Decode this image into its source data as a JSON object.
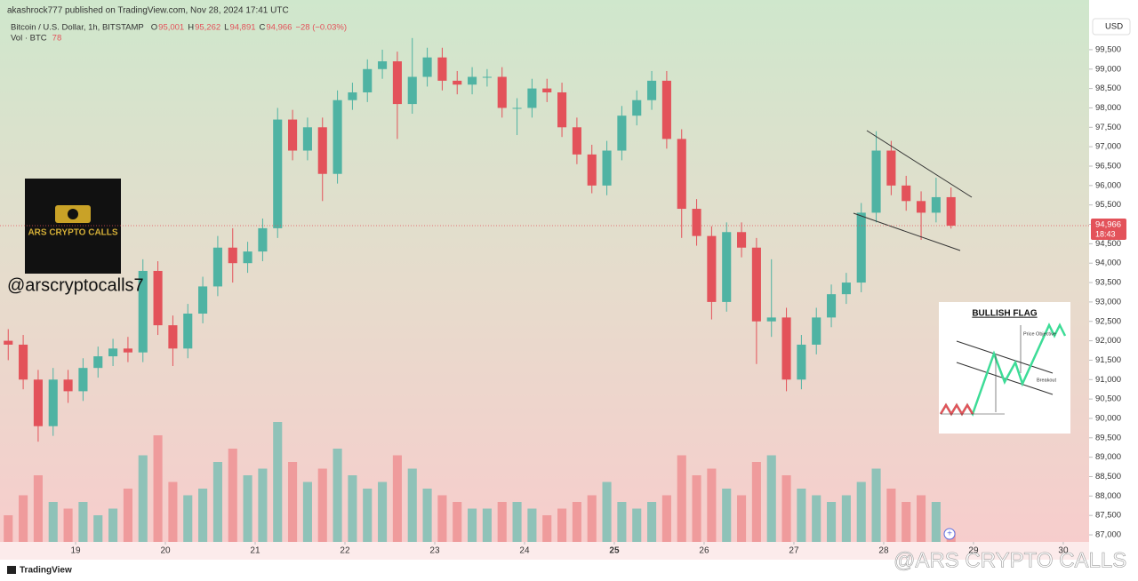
{
  "header": {
    "publisher": "akashrock777 published on TradingView.com, Nov 28, 2024 17:41 UTC"
  },
  "chart_data": {
    "type": "candlestick",
    "title": "Bitcoin / U.S. Dollar, 1h, BITSTAMP",
    "ohlc_legend": [
      {
        "key": "O",
        "value": "95,001"
      },
      {
        "key": "H",
        "value": "95,262"
      },
      {
        "key": "L",
        "value": "94,891"
      },
      {
        "key": "C",
        "value": "94,966"
      }
    ],
    "change": "−28 (−0.03%)",
    "volume_label": "Vol · BTC",
    "currency": "USD",
    "last_price_label": "94,966",
    "countdown": "18:43",
    "up_color": "#4fb3a3",
    "down_color": "#e3525a",
    "volume_up_color": "#8fc2b8",
    "volume_down_color": "#ef9b9c",
    "xlim": [
      -20.2,
      270.9
    ],
    "xticks": [
      {
        "value": 0,
        "label": "19"
      },
      {
        "value": 24,
        "label": "20"
      },
      {
        "value": 48,
        "label": "21"
      },
      {
        "value": 72,
        "label": "22"
      },
      {
        "value": 96,
        "label": "23"
      },
      {
        "value": 120,
        "label": "24"
      },
      {
        "value": 144,
        "label": "25"
      },
      {
        "value": 168,
        "label": "26"
      },
      {
        "value": 192,
        "label": "27"
      },
      {
        "value": 216,
        "label": "28"
      },
      {
        "value": 240,
        "label": "29"
      },
      {
        "value": 264,
        "label": "30"
      }
    ],
    "ylim": [
      86360,
      100780
    ],
    "yticks": [
      {
        "value": 87000,
        "label": "87,000"
      },
      {
        "value": 87500,
        "label": "87,500"
      },
      {
        "value": 88000,
        "label": "88,000"
      },
      {
        "value": 88500,
        "label": "88,500"
      },
      {
        "value": 89000,
        "label": "89,000"
      },
      {
        "value": 89500,
        "label": "89,500"
      },
      {
        "value": 90000,
        "label": "90,000"
      },
      {
        "value": 90500,
        "label": "90,500"
      },
      {
        "value": 91000,
        "label": "91,000"
      },
      {
        "value": 91500,
        "label": "91,500"
      },
      {
        "value": 92000,
        "label": "92,000"
      },
      {
        "value": 92500,
        "label": "92,500"
      },
      {
        "value": 93000,
        "label": "93,000"
      },
      {
        "value": 93500,
        "label": "93,500"
      },
      {
        "value": 94000,
        "label": "94,000"
      },
      {
        "value": 94500,
        "label": "94,500"
      },
      {
        "value": 95000,
        "label": "95,000"
      },
      {
        "value": 95500,
        "label": "95,500"
      },
      {
        "value": 96000,
        "label": "96,000"
      },
      {
        "value": 96500,
        "label": "96,500"
      },
      {
        "value": 97000,
        "label": "97,000"
      },
      {
        "value": 97500,
        "label": "97,500"
      },
      {
        "value": 98000,
        "label": "98,000"
      },
      {
        "value": 98500,
        "label": "98,500"
      },
      {
        "value": 99000,
        "label": "99,000"
      },
      {
        "value": 99500,
        "label": "99,500"
      }
    ],
    "candles": {
      "x": [
        -18,
        -14,
        -10,
        -6,
        -2,
        2,
        6,
        10,
        14,
        18,
        22,
        26,
        30,
        34,
        38,
        42,
        46,
        50,
        54,
        58,
        62,
        66,
        70,
        74,
        78,
        82,
        86,
        90,
        94,
        98,
        102,
        106,
        110,
        114,
        118,
        122,
        126,
        130,
        134,
        138,
        142,
        146,
        150,
        154,
        158,
        162,
        166,
        170,
        174,
        178,
        182,
        186,
        190,
        194,
        198,
        202,
        206,
        210,
        214,
        218,
        222,
        226,
        230,
        234
      ],
      "open": [
        92000,
        91900,
        91000,
        89800,
        91000,
        90700,
        91300,
        91600,
        91800,
        91700,
        93800,
        92400,
        91800,
        92700,
        93400,
        94400,
        94000,
        94300,
        94900,
        97700,
        96900,
        97500,
        96300,
        98200,
        98400,
        99000,
        99200,
        98100,
        98800,
        99300,
        98700,
        98600,
        98800,
        98800,
        98000,
        98000,
        98500,
        98400,
        97500,
        96800,
        96000,
        96900,
        97800,
        98200,
        98700,
        97200,
        95400,
        94700,
        93000,
        94800,
        94400,
        92500,
        92600,
        91000,
        91900,
        92600,
        93200,
        93500,
        95300,
        96900,
        96000,
        95600,
        95300,
        95700
      ],
      "high": [
        92300,
        92150,
        91250,
        91300,
        91250,
        91550,
        91850,
        92050,
        92100,
        94100,
        94050,
        92650,
        92950,
        93650,
        94700,
        94900,
        94550,
        95150,
        98000,
        97950,
        97750,
        97750,
        98450,
        98650,
        99250,
        99500,
        99450,
        99800,
        99550,
        99550,
        98950,
        99050,
        99000,
        99050,
        98250,
        98750,
        98750,
        98650,
        97750,
        97050,
        97150,
        98050,
        98450,
        98950,
        98950,
        97450,
        95650,
        94950,
        95050,
        95050,
        94650,
        94100,
        92850,
        92150,
        92850,
        93450,
        93750,
        95550,
        97400,
        97150,
        96250,
        95850,
        96200,
        95950
      ],
      "low": [
        91500,
        90750,
        89400,
        89550,
        90400,
        90450,
        91050,
        91350,
        91450,
        91450,
        92150,
        91350,
        91550,
        92450,
        93150,
        93500,
        93750,
        94050,
        94650,
        96650,
        96650,
        95600,
        96050,
        97950,
        98150,
        98750,
        97200,
        97850,
        98550,
        98450,
        98350,
        98350,
        98550,
        97750,
        97300,
        97750,
        98150,
        97250,
        96550,
        95800,
        95750,
        96650,
        97550,
        97950,
        96950,
        94650,
        94450,
        92550,
        92750,
        94150,
        91400,
        92100,
        90700,
        90750,
        91650,
        92350,
        92950,
        93250,
        95050,
        95750,
        95350,
        94600,
        95050,
        94891
      ],
      "close": [
        91900,
        91000,
        89800,
        91000,
        90700,
        91300,
        91600,
        91800,
        91700,
        93800,
        92400,
        91800,
        92700,
        93400,
        94400,
        94000,
        94300,
        94900,
        97700,
        96900,
        97500,
        96300,
        98200,
        98400,
        99000,
        99200,
        98100,
        98800,
        99300,
        98700,
        98600,
        98800,
        98800,
        98000,
        98000,
        98500,
        98400,
        97500,
        96800,
        96000,
        96900,
        97800,
        98200,
        98700,
        97200,
        95400,
        94700,
        93000,
        94800,
        94400,
        92500,
        92600,
        91000,
        91900,
        92600,
        93200,
        93500,
        95300,
        96900,
        96000,
        95600,
        95300,
        95700,
        94966
      ],
      "volume": [
        200,
        350,
        500,
        300,
        250,
        300,
        200,
        250,
        400,
        650,
        800,
        450,
        350,
        400,
        600,
        700,
        500,
        550,
        900,
        600,
        450,
        550,
        700,
        500,
        400,
        450,
        650,
        550,
        400,
        350,
        300,
        250,
        250,
        300,
        300,
        250,
        200,
        250,
        300,
        350,
        450,
        300,
        250,
        300,
        350,
        650,
        500,
        550,
        400,
        350,
        600,
        650,
        500,
        400,
        350,
        300,
        350,
        450,
        550,
        400,
        300,
        350,
        300,
        78
      ]
    }
  },
  "overlays": {
    "logo_text": "ARS CRYPTO CALLS",
    "handle": "@arscryptocalls7",
    "watermark": "@ARS CRYPTO CALLS",
    "inset": {
      "title": "BULLISH FLAG",
      "price_objective": "Price Objective",
      "breakout": "Breakout"
    }
  },
  "footer": {
    "brand": "TradingView"
  }
}
